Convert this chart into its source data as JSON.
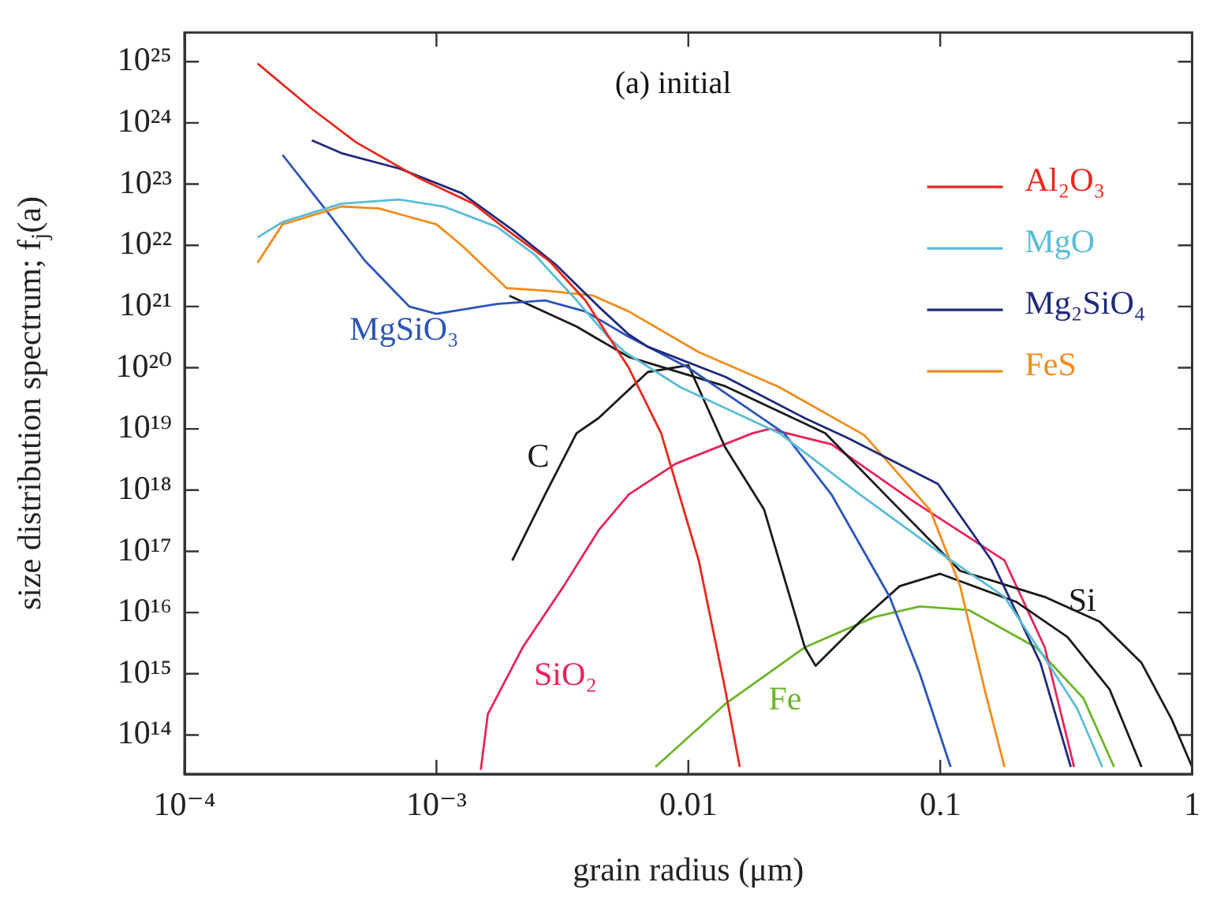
{
  "chart_data": {
    "type": "line",
    "title": "(a) initial",
    "xlabel": "grain radius (μm)",
    "ylabel": "size distribution spectrum; f$_{j}$(a)",
    "log": "xy",
    "xlim": [
      0.0001,
      1
    ],
    "ylim": [
      23000000000000.0,
      3e+25
    ],
    "xticks": [
      {
        "value": 0.0001,
        "label": "10⁻⁴"
      },
      {
        "value": 0.001,
        "label": "10⁻³"
      },
      0.01,
      0.1,
      1
    ],
    "yticks": [
      {
        "value": 100000000000000.0,
        "label": "10¹⁴"
      },
      {
        "value": 1000000000000000.0,
        "label": "10¹⁵"
      },
      {
        "value": 1e+16,
        "label": "10¹⁶"
      },
      {
        "value": 1e+17,
        "label": "10¹⁷"
      },
      {
        "value": 1e+18,
        "label": "10¹⁸"
      },
      {
        "value": 1e+19,
        "label": "10¹⁹"
      },
      {
        "value": 1e+20,
        "label": "10²⁰"
      },
      {
        "value": 1e+21,
        "label": "10²¹"
      },
      {
        "value": 1e+22,
        "label": "10²²"
      },
      {
        "value": 1e+23,
        "label": "10²³"
      },
      {
        "value": 1e+24,
        "label": "10²⁴"
      },
      {
        "value": 1e+25,
        "label": "10²⁵"
      }
    ],
    "legend": "top right",
    "marker": "none",
    "line_style": "solid",
    "series": [
      {
        "name": "Al₂O₃",
        "color": "#e8281e",
        "x": [
          0.000195,
          0.00032,
          0.00048,
          0.00085,
          0.0014,
          0.0019,
          0.0028,
          0.0039,
          0.0058,
          0.0078,
          0.011,
          0.014,
          0.016
        ],
        "values": [
          9.3e+24,
          1.7e+24,
          4.8e+23,
          1.26e+23,
          4.8e+22,
          1.8e+22,
          5.6e+21,
          1.26e+21,
          1e+20,
          8.5e+18,
          7.1e+16,
          560000000000000.0,
          30000000000000.0
        ]
      },
      {
        "name": "MgO",
        "color": "#5bbcd6",
        "x": [
          0.000195,
          0.000245,
          0.00042,
          0.00071,
          0.00107,
          0.00174,
          0.00245,
          0.0036,
          0.0048,
          0.0056,
          0.0093,
          0.023,
          0.048,
          0.098,
          0.18,
          0.26,
          0.35,
          0.44
        ],
        "values": [
          1.35e+22,
          2.4e+22,
          4.8e+22,
          5.6e+22,
          4.3e+22,
          2e+22,
          7.1e+21,
          1.26e+21,
          3.2e+20,
          1.8e+20,
          4.8e+19,
          8.5e+18,
          8.5e+17,
          1e+17,
          1.8e+16,
          1800000000000000.0,
          270000000000000.0,
          30000000000000.0
        ]
      },
      {
        "name": "Mg₂SiO₄",
        "color": "#1f2a7a",
        "x": [
          0.00032,
          0.00042,
          0.00071,
          0.00126,
          0.002,
          0.003,
          0.0044,
          0.0058,
          0.0069,
          0.014,
          0.029,
          0.043,
          0.098,
          0.16,
          0.25,
          0.33
        ],
        "values": [
          5.2e+23,
          3.2e+23,
          1.8e+23,
          7.1e+22,
          1.8e+22,
          4.7e+21,
          1e+21,
          3.5e+20,
          2.2e+20,
          7.1e+19,
          1.5e+19,
          7.1e+18,
          1.26e+18,
          7.1e+16,
          1500000000000000.0,
          30000000000000.0
        ]
      },
      {
        "name": "FeS",
        "color": "#f28c1c",
        "x": [
          0.000195,
          0.000245,
          0.00042,
          0.00059,
          0.001,
          0.00126,
          0.0019,
          0.0028,
          0.0042,
          0.0058,
          0.011,
          0.023,
          0.05,
          0.091,
          0.12,
          0.15,
          0.18
        ],
        "values": [
          5.2e+21,
          2.2e+22,
          4.3e+22,
          4e+22,
          2.2e+22,
          1e+22,
          2e+21,
          1.8e+21,
          1.5e+21,
          8.3e+20,
          1.8e+20,
          4.8e+19,
          7.9e+18,
          4.8e+17,
          2.7e+16,
          560000000000000.0,
          30000000000000.0
        ]
      },
      {
        "name": "MgSiO₃",
        "color": "#2c55b8",
        "x": [
          0.000245,
          0.00036,
          0.00052,
          0.00078,
          0.001,
          0.00174,
          0.0027,
          0.0039,
          0.0058,
          0.01,
          0.024,
          0.037,
          0.063,
          0.083,
          0.11
        ],
        "values": [
          3e+23,
          4e+22,
          5.6e+21,
          1e+21,
          7.6e+20,
          1.1e+21,
          1.26e+21,
          8.3e+20,
          3.2e+20,
          1e+20,
          8.5e+18,
          8.5e+17,
          1.8e+16,
          1000000000000000.0,
          30000000000000.0
        ]
      },
      {
        "name": "C",
        "color": "#1a1a1a",
        "x": [
          0.002,
          0.0027,
          0.0036,
          0.0044,
          0.0069,
          0.01,
          0.014,
          0.02,
          0.029,
          0.032,
          0.048,
          0.069,
          0.1,
          0.2,
          0.32,
          0.47,
          0.63
        ],
        "values": [
          7.1e+16,
          8.5e+17,
          8.5e+18,
          1.5e+19,
          8.5e+19,
          1.1e+20,
          5e+18,
          4.8e+17,
          2700000000000000.0,
          1350000000000000.0,
          7100000000000000.0,
          2.7e+16,
          4.3e+16,
          1.5e+16,
          4000000000000000.0,
          560000000000000.0,
          30000000000000.0
        ]
      },
      {
        "name": "Si",
        "color": "#1a1a1a",
        "x": [
          0.00195,
          0.0036,
          0.0058,
          0.014,
          0.035,
          0.063,
          0.12,
          0.26,
          0.43,
          0.63,
          0.83,
          1
        ],
        "values": [
          1.5e+21,
          4.7e+20,
          1.5e+20,
          5e+19,
          8.5e+18,
          7.1e+17,
          4.8e+16,
          1.8e+16,
          7100000000000000.0,
          1500000000000000.0,
          180000000000000.0,
          30000000000000.0
        ]
      },
      {
        "name": "SiO₂",
        "color": "#e8245a",
        "x": [
          0.0015,
          0.0016,
          0.0022,
          0.0032,
          0.0044,
          0.0058,
          0.0089,
          0.018,
          0.021,
          0.037,
          0.076,
          0.18,
          0.26,
          0.34
        ],
        "values": [
          27000000000000.0,
          220000000000000.0,
          2700000000000000.0,
          2.7e+16,
          2.2e+17,
          8.5e+17,
          2.7e+18,
          8.5e+18,
          1e+19,
          5.6e+18,
          7.1e+17,
          7.1e+16,
          2700000000000000.0,
          30000000000000.0
        ]
      },
      {
        "name": "Fe",
        "color": "#6cb52a",
        "x": [
          0.0074,
          0.014,
          0.029,
          0.055,
          0.083,
          0.13,
          0.24,
          0.37,
          0.49
        ],
        "values": [
          30000000000000.0,
          320000000000000.0,
          2700000000000000.0,
          8500000000000000.0,
          1.26e+16,
          1.1e+16,
          2700000000000000.0,
          400000000000000.0,
          30000000000000.0
        ]
      }
    ]
  }
}
